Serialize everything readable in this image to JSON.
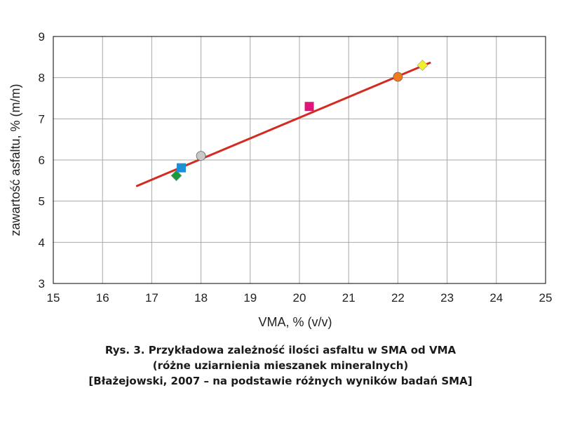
{
  "chart_data": {
    "type": "scatter",
    "xlabel": "VMA, % (v/v)",
    "ylabel": "zawartość asfaltu, % (m/m)",
    "xlim": [
      15,
      25
    ],
    "ylim": [
      3,
      9
    ],
    "x_ticks": [
      "15",
      "16",
      "17",
      "18",
      "19",
      "20",
      "21",
      "22",
      "23",
      "24",
      "25"
    ],
    "y_ticks": [
      "3",
      "4",
      "5",
      "6",
      "7",
      "8",
      "9"
    ],
    "grid": true,
    "points": [
      {
        "x": 17.5,
        "y": 5.62,
        "marker": "diamond",
        "color": "#1a9a3a"
      },
      {
        "x": 17.6,
        "y": 5.81,
        "marker": "square",
        "color": "#1e90d8"
      },
      {
        "x": 18.0,
        "y": 6.1,
        "marker": "circle",
        "color": "#c8c8c8"
      },
      {
        "x": 20.2,
        "y": 7.3,
        "marker": "square",
        "color": "#e0157a"
      },
      {
        "x": 22.0,
        "y": 8.02,
        "marker": "circle",
        "color": "#f07c1e"
      },
      {
        "x": 22.5,
        "y": 8.3,
        "marker": "diamond",
        "color": "#f2ef2a"
      }
    ],
    "trendline": {
      "x": [
        16.7,
        22.65
      ],
      "y": [
        5.37,
        8.36
      ],
      "color": "#d42a20"
    }
  },
  "caption": {
    "line1": "Rys. 3. Przykładowa zależność ilości asfaltu w SMA od VMA",
    "line2": "(różne uziarnienia mieszanek mineralnych)",
    "line3": "[Błażejowski, 2007 – na podstawie różnych wyników badań SMA]"
  }
}
